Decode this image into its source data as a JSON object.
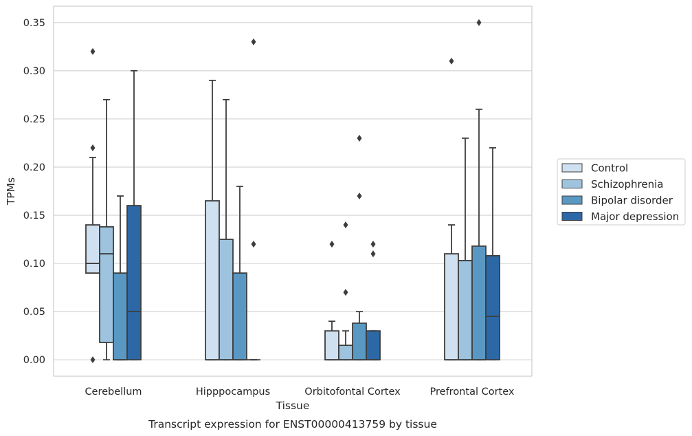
{
  "caption": "Transcript expression for ENST00000413759 by tissue",
  "chart_data": {
    "type": "box",
    "xlabel": "Tissue",
    "ylabel": "TPMs",
    "ylim": [
      -0.017,
      0.367
    ],
    "yticks": [
      0.0,
      0.05,
      0.1,
      0.15,
      0.2,
      0.25,
      0.3,
      0.35
    ],
    "ytick_labels": [
      "0.00",
      "0.05",
      "0.10",
      "0.15",
      "0.20",
      "0.25",
      "0.30",
      "0.35"
    ],
    "grid": "horizontal",
    "legend_position": "outside-right",
    "categories": [
      "Cerebellum",
      "Hipppocampus",
      "Orbitofontal Cortex",
      "Prefrontal Cortex"
    ],
    "series": [
      {
        "name": "Control",
        "color": "#cfe0f0",
        "boxes": [
          {
            "q1": 0.09,
            "median": 0.1,
            "q3": 0.14,
            "whisker_low": 0.09,
            "whisker_high": 0.21,
            "outliers": [
              0.0,
              0.22,
              0.32
            ]
          },
          {
            "q1": 0.0,
            "median": 0.0,
            "q3": 0.165,
            "whisker_low": 0.0,
            "whisker_high": 0.29,
            "outliers": []
          },
          {
            "q1": 0.0,
            "median": 0.0,
            "q3": 0.03,
            "whisker_low": 0.0,
            "whisker_high": 0.04,
            "outliers": [
              0.12
            ]
          },
          {
            "q1": 0.0,
            "median": 0.0,
            "q3": 0.11,
            "whisker_low": 0.0,
            "whisker_high": 0.14,
            "outliers": [
              0.31
            ]
          }
        ]
      },
      {
        "name": "Schizophrenia",
        "color": "#9dc3de",
        "boxes": [
          {
            "q1": 0.018,
            "median": 0.11,
            "q3": 0.138,
            "whisker_low": 0.0,
            "whisker_high": 0.27,
            "outliers": []
          },
          {
            "q1": 0.0,
            "median": 0.0,
            "q3": 0.125,
            "whisker_low": 0.0,
            "whisker_high": 0.27,
            "outliers": []
          },
          {
            "q1": 0.0,
            "median": 0.0,
            "q3": 0.015,
            "whisker_low": 0.0,
            "whisker_high": 0.03,
            "outliers": [
              0.07,
              0.14
            ]
          },
          {
            "q1": 0.0,
            "median": 0.0,
            "q3": 0.103,
            "whisker_low": 0.0,
            "whisker_high": 0.23,
            "outliers": []
          }
        ]
      },
      {
        "name": "Bipolar disorder",
        "color": "#5a98c4",
        "boxes": [
          {
            "q1": 0.0,
            "median": 0.0,
            "q3": 0.09,
            "whisker_low": 0.0,
            "whisker_high": 0.17,
            "outliers": []
          },
          {
            "q1": 0.0,
            "median": 0.0,
            "q3": 0.09,
            "whisker_low": 0.0,
            "whisker_high": 0.18,
            "outliers": []
          },
          {
            "q1": 0.0,
            "median": 0.0,
            "q3": 0.038,
            "whisker_low": 0.0,
            "whisker_high": 0.05,
            "outliers": [
              0.17,
              0.23
            ]
          },
          {
            "q1": 0.0,
            "median": 0.0,
            "q3": 0.118,
            "whisker_low": 0.0,
            "whisker_high": 0.26,
            "outliers": [
              0.35
            ]
          }
        ]
      },
      {
        "name": "Major depression",
        "color": "#2c68a6",
        "boxes": [
          {
            "q1": 0.0,
            "median": 0.05,
            "q3": 0.16,
            "whisker_low": 0.0,
            "whisker_high": 0.3,
            "outliers": []
          },
          {
            "q1": 0.0,
            "median": 0.0,
            "q3": 0.0,
            "whisker_low": 0.0,
            "whisker_high": 0.0,
            "outliers": [
              0.12,
              0.33
            ]
          },
          {
            "q1": 0.0,
            "median": 0.0,
            "q3": 0.03,
            "whisker_low": 0.0,
            "whisker_high": 0.03,
            "outliers": [
              0.11,
              0.12
            ]
          },
          {
            "q1": 0.0,
            "median": 0.045,
            "q3": 0.108,
            "whisker_low": 0.0,
            "whisker_high": 0.22,
            "outliers": []
          }
        ]
      }
    ]
  }
}
